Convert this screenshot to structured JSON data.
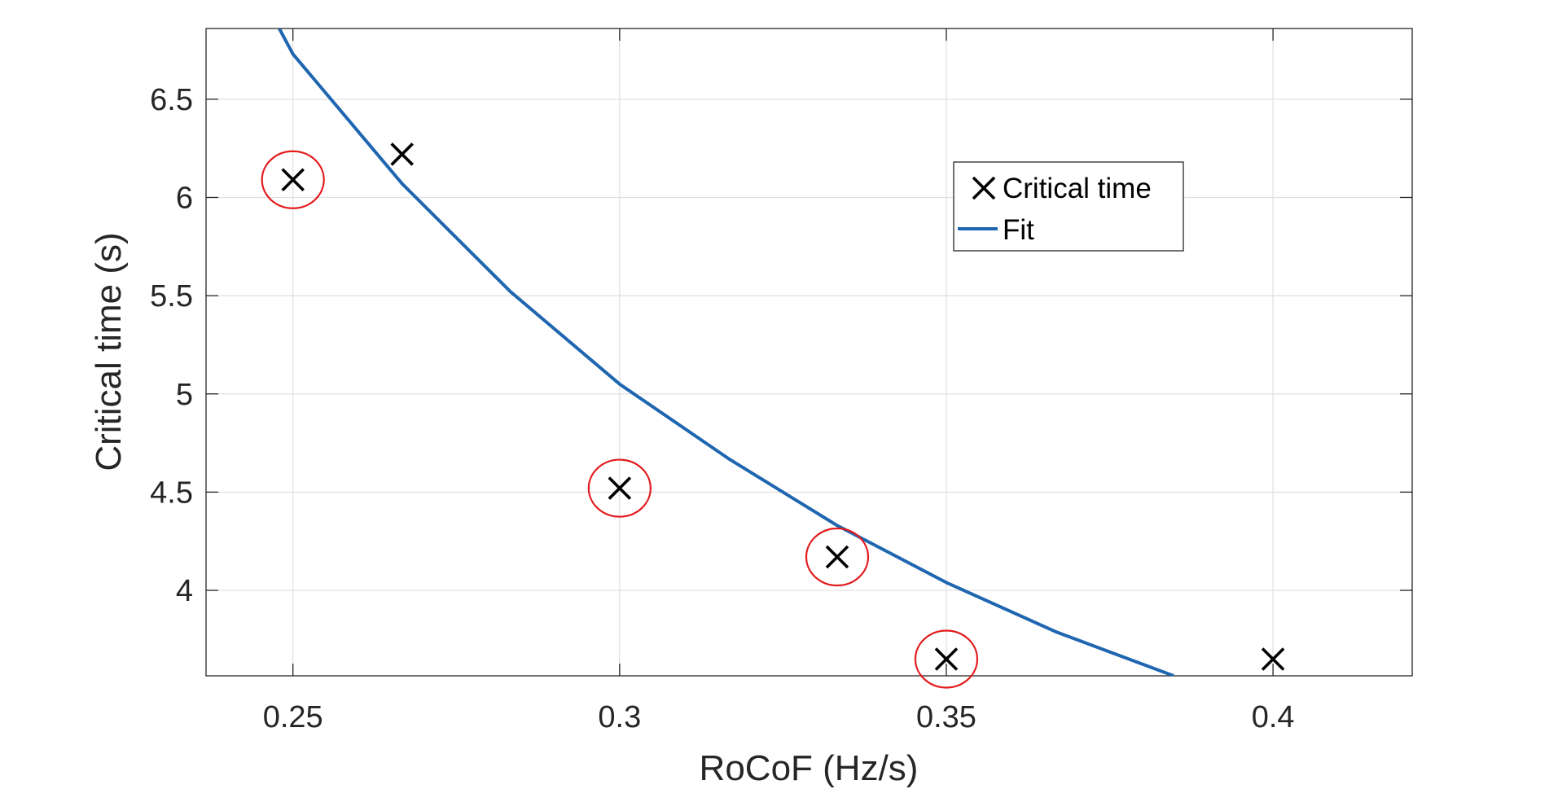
{
  "chart_data": {
    "type": "scatter",
    "xlabel": "RoCoF (Hz/s)",
    "ylabel": "Critical time (s)",
    "xlim": [
      0.2367,
      0.4213
    ],
    "ylim": [
      3.565,
      6.86
    ],
    "xticks": [
      0.25,
      0.3,
      0.35,
      0.4
    ],
    "yticks": [
      4,
      4.5,
      5,
      5.5,
      6,
      6.5
    ],
    "xtick_labels": [
      "0.25",
      "0.3",
      "0.35",
      "0.4"
    ],
    "ytick_labels": [
      "4",
      "4.5",
      "5",
      "5.5",
      "6",
      "6.5"
    ],
    "grid": true,
    "legend_position": "upper-right-inside",
    "series": [
      {
        "name": "Critical time",
        "kind": "marker",
        "marker": "x",
        "color": "#000000",
        "points": [
          {
            "x": 0.25,
            "y": 6.09,
            "highlighted": true
          },
          {
            "x": 0.2667,
            "y": 6.22,
            "highlighted": false
          },
          {
            "x": 0.3,
            "y": 4.52,
            "highlighted": true
          },
          {
            "x": 0.3333,
            "y": 4.17,
            "highlighted": true
          },
          {
            "x": 0.35,
            "y": 3.65,
            "highlighted": true
          },
          {
            "x": 0.4,
            "y": 3.65,
            "highlighted": false
          }
        ]
      },
      {
        "name": "Fit",
        "kind": "line",
        "color": "#1f66b0",
        "points": [
          {
            "x": 0.2479,
            "y": 6.86
          },
          {
            "x": 0.25,
            "y": 6.73
          },
          {
            "x": 0.2667,
            "y": 6.07
          },
          {
            "x": 0.2833,
            "y": 5.52
          },
          {
            "x": 0.3,
            "y": 5.05
          },
          {
            "x": 0.3167,
            "y": 4.67
          },
          {
            "x": 0.3333,
            "y": 4.33
          },
          {
            "x": 0.35,
            "y": 4.04
          },
          {
            "x": 0.3667,
            "y": 3.79
          },
          {
            "x": 0.3848,
            "y": 3.565
          }
        ]
      }
    ],
    "highlight_color": "#e31a1c"
  }
}
